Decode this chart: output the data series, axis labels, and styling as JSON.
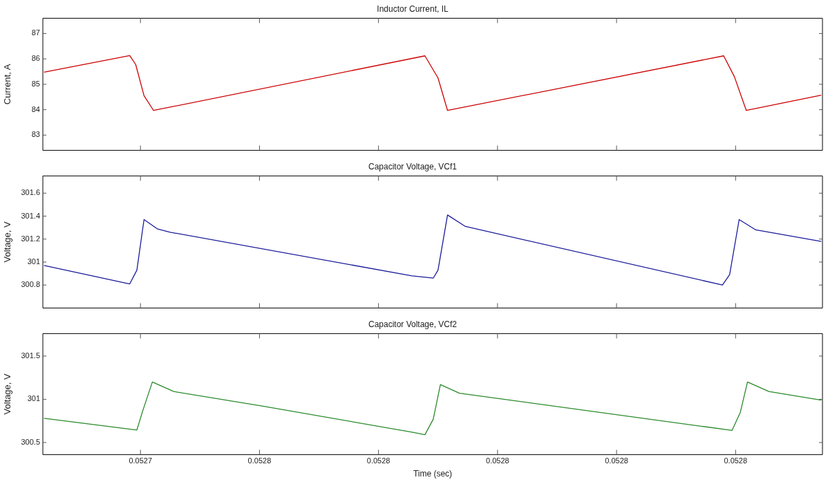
{
  "chart_data": [
    {
      "type": "line",
      "title": "Inductor Current, IL",
      "ylabel": "Current, A",
      "xlim": [
        0.0527318,
        0.0527973
      ],
      "xticks": [
        {
          "value": 0.05274,
          "label": null
        },
        {
          "value": 0.05275,
          "label": null
        },
        {
          "value": 0.05276,
          "label": null
        },
        {
          "value": 0.05277,
          "label": null
        },
        {
          "value": 0.05278,
          "label": null
        },
        {
          "value": 0.05279,
          "label": null
        }
      ],
      "ylim": [
        82.4,
        87.6
      ],
      "yticks": [
        83,
        84,
        85,
        86,
        87
      ],
      "tick_labels": "y",
      "grid": false,
      "legend": false,
      "series": [
        {
          "color": "#cc0000",
          "x": [
            0.0527319,
            0.0527391,
            0.0527396,
            0.0527403,
            0.0527411,
            0.0527639,
            0.052765,
            0.0527658,
            0.052789,
            0.0527899,
            0.0527909,
            0.0527972
          ],
          "values": [
            85.48,
            86.13,
            85.78,
            84.55,
            83.97,
            86.12,
            85.25,
            83.97,
            86.12,
            85.3,
            83.97,
            84.57
          ]
        }
      ]
    },
    {
      "type": "line",
      "title": "Capacitor Voltage, VCf1",
      "ylabel": "Voltage, V",
      "xlim": [
        0.0527318,
        0.0527973
      ],
      "xticks": [
        {
          "value": 0.05274,
          "label": null
        },
        {
          "value": 0.05275,
          "label": null
        },
        {
          "value": 0.05276,
          "label": null
        },
        {
          "value": 0.05277,
          "label": null
        },
        {
          "value": 0.05278,
          "label": null
        },
        {
          "value": 0.05279,
          "label": null
        }
      ],
      "ylim": [
        300.6,
        301.75
      ],
      "yticks": [
        {
          "value": 300.8,
          "label": "300.8"
        },
        {
          "value": 301,
          "label": "301"
        },
        {
          "value": 301.2,
          "label": "301.2"
        },
        {
          "value": 301.4,
          "label": "301.4"
        },
        {
          "value": 301.6,
          "label": "301.6"
        }
      ],
      "tick_labels": "y",
      "grid": false,
      "legend": false,
      "series": [
        {
          "color": "#1a1a9a",
          "x": [
            0.0527319,
            0.0527391,
            0.0527397,
            0.0527403,
            0.0527414,
            0.0527425,
            0.0527628,
            0.0527646,
            0.052765,
            0.0527658,
            0.0527673,
            0.0527889,
            0.0527895,
            0.0527903,
            0.0527917,
            0.0527972
          ],
          "values": [
            300.97,
            300.81,
            300.93,
            301.37,
            301.29,
            301.26,
            300.88,
            300.86,
            300.93,
            301.41,
            301.31,
            300.8,
            300.89,
            301.37,
            301.28,
            301.18
          ]
        }
      ]
    },
    {
      "type": "line",
      "title": "Capacitor Voltage, VCf2",
      "ylabel": "Voltage, V",
      "xlabel": "Time (sec)",
      "xlim": [
        0.0527318,
        0.0527973
      ],
      "xticks": [
        {
          "value": 0.05274,
          "label": "0.0527"
        },
        {
          "value": 0.05275,
          "label": "0.0528"
        },
        {
          "value": 0.05276,
          "label": "0.0528"
        },
        {
          "value": 0.05277,
          "label": "0.0528"
        },
        {
          "value": 0.05278,
          "label": "0.0528"
        },
        {
          "value": 0.05279,
          "label": "0.0528"
        }
      ],
      "ylim": [
        300.36,
        301.76
      ],
      "yticks": [
        300.5,
        301,
        301.5
      ],
      "grid": false,
      "legend": false,
      "series": [
        {
          "color": "#2a8a2a",
          "x": [
            0.0527319,
            0.0527397,
            0.0527402,
            0.052741,
            0.0527428,
            0.0527503,
            0.0527628,
            0.0527639,
            0.0527646,
            0.0527652,
            0.0527668,
            0.0527897,
            0.0527904,
            0.052791,
            0.0527928,
            0.0527972
          ],
          "values": [
            300.78,
            300.645,
            300.87,
            301.2,
            301.09,
            300.92,
            300.62,
            300.59,
            300.77,
            301.17,
            301.07,
            300.64,
            300.85,
            301.2,
            301.09,
            300.99
          ]
        }
      ]
    }
  ]
}
